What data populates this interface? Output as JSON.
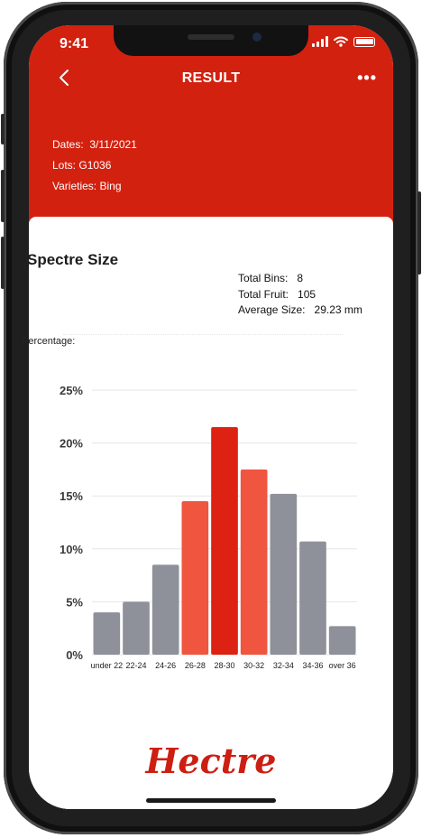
{
  "status_bar": {
    "time": "9:41"
  },
  "nav": {
    "back_icon": "chevron-left-icon",
    "title": "RESULT",
    "more_icon": "more-dots-icon",
    "more_label": "•••"
  },
  "info": {
    "dates_label": "Dates:",
    "dates_value": "3/11/2021",
    "lots_label": "Lots:",
    "lots_value": "G1036",
    "varieties_label": "Varieties:",
    "varieties_value": "Bing"
  },
  "section": {
    "title": "Spectre Size"
  },
  "stats": {
    "total_bins_label": "Total Bins:",
    "total_bins_value": "8",
    "total_fruit_label": "Total Fruit:",
    "total_fruit_value": "105",
    "average_size_label": "Average Size:",
    "average_size_value": "29.23 mm"
  },
  "chart_label": "Percentage:",
  "colors": {
    "brand_red": "#d3210f",
    "bar_gray": "#8e9199",
    "bar_light_red": "#f05540",
    "bar_dark_red": "#dd2112"
  },
  "chart_data": {
    "type": "bar",
    "categories": [
      "under 22",
      "22-24",
      "24-26",
      "26-28",
      "28-30",
      "30-32",
      "32-34",
      "34-36",
      "over 36"
    ],
    "values": [
      4.0,
      5.0,
      8.5,
      14.5,
      21.5,
      17.5,
      15.2,
      10.7,
      2.7
    ],
    "bar_colors": [
      "gray",
      "gray",
      "gray",
      "light-red",
      "dark-red",
      "light-red",
      "gray",
      "gray",
      "gray"
    ],
    "yticks": [
      "0%",
      "5%",
      "10%",
      "15%",
      "20%",
      "25%"
    ],
    "ylim": [
      0,
      25
    ],
    "grid": true,
    "title": "",
    "xlabel": "",
    "ylabel": ""
  },
  "brand": {
    "name": "Hectre"
  }
}
